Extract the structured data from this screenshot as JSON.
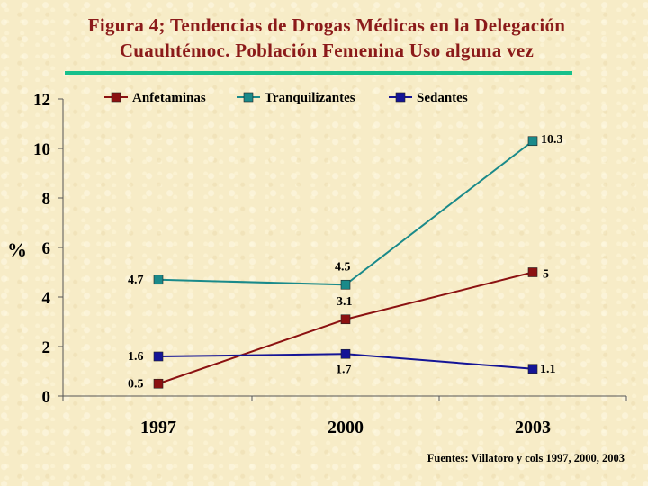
{
  "title_line1": "Figura 4; Tendencias de Drogas Médicas en  la Delegación",
  "title_line2": "Cuauhtémoc. Población Femenina Uso alguna vez",
  "source": "Fuentes: Villatoro y cols 1997, 2000, 2003",
  "colors": {
    "title": "#8b1a1a",
    "rule": "#17c08b",
    "background": "#f7ecc7"
  },
  "chart_data": {
    "type": "line",
    "x": [
      "1997",
      "2000",
      "2003"
    ],
    "ylabel": "%",
    "ylim": [
      0,
      12
    ],
    "yticks": [
      "0",
      "2",
      "4",
      "6",
      "8",
      "10",
      "12"
    ],
    "grid": false,
    "legend_position": "top",
    "series": [
      {
        "name": "Anfetaminas",
        "values": [
          0.5,
          3.1,
          5
        ],
        "labels": [
          "0.5",
          "3.1",
          "5"
        ],
        "color": "#8b1111",
        "marker": "square"
      },
      {
        "name": "Tranquilizantes",
        "values": [
          4.7,
          4.5,
          10.3
        ],
        "labels": [
          "4.7",
          "4.5",
          "10.3"
        ],
        "color": "#1a8a8a",
        "marker": "square"
      },
      {
        "name": "Sedantes",
        "values": [
          1.6,
          1.7,
          1.1
        ],
        "labels": [
          "1.6",
          "1.7",
          "1.1"
        ],
        "color": "#141496",
        "marker": "square"
      }
    ]
  }
}
